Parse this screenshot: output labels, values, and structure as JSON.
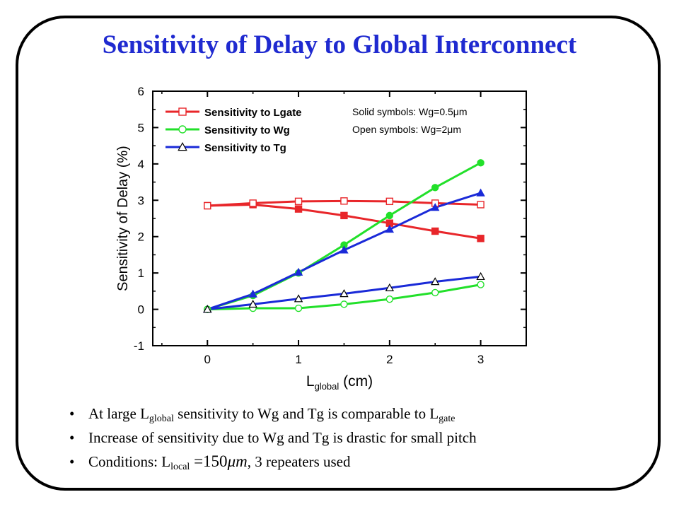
{
  "title": "Sensitivity of Delay to Global Interconnect",
  "chart_data": {
    "type": "line",
    "title": "",
    "xlabel": {
      "main": "L",
      "sub": "global",
      "unit": " (cm)"
    },
    "ylabel": "Sensitivity of Delay (%)",
    "xlim": [
      -0.6,
      3.5
    ],
    "ylim": [
      -1,
      6
    ],
    "xticks": [
      0,
      1,
      2,
      3
    ],
    "yticks": [
      -1,
      0,
      1,
      2,
      3,
      4,
      5,
      6
    ],
    "grid": false,
    "legend_position": "top-left",
    "annotations": {
      "solid": {
        "prefix": "Solid symbols: Wg=0.5",
        "mu": "μ",
        "suffix": "m"
      },
      "open": {
        "prefix": "Open symbols: Wg=2",
        "mu": "μ",
        "suffix": "m"
      }
    },
    "x": [
      0,
      0.5,
      1,
      1.5,
      2,
      2.5,
      3
    ],
    "series": [
      {
        "name": "Sensitivity to Lgate",
        "color": "#e8262a",
        "marker": "square",
        "fill": "solid",
        "values": [
          2.85,
          2.88,
          2.76,
          2.58,
          2.37,
          2.15,
          1.95
        ]
      },
      {
        "name": "Sensitivity to Lgate",
        "color": "#e8262a",
        "marker": "square",
        "fill": "open",
        "values": [
          2.85,
          2.92,
          2.97,
          2.98,
          2.97,
          2.92,
          2.88
        ]
      },
      {
        "name": "Sensitivity to Wg",
        "color": "#22e02a",
        "marker": "circle",
        "fill": "solid",
        "values": [
          0.0,
          0.38,
          1.0,
          1.77,
          2.58,
          3.35,
          4.03
        ]
      },
      {
        "name": "Sensitivity to Wg",
        "color": "#22e02a",
        "marker": "circle",
        "fill": "open",
        "values": [
          0.0,
          0.03,
          0.03,
          0.14,
          0.28,
          0.46,
          0.68
        ]
      },
      {
        "name": "Sensitivity to Tg",
        "color": "#1a2ad8",
        "marker": "triangle",
        "fill": "solid",
        "values": [
          0.0,
          0.42,
          1.02,
          1.63,
          2.2,
          2.8,
          3.2
        ]
      },
      {
        "name": "Sensitivity to Tg",
        "color": "#1a2ad8",
        "marker": "triangle",
        "fill": "open",
        "values": [
          0.0,
          0.14,
          0.29,
          0.43,
          0.59,
          0.76,
          0.9
        ]
      }
    ]
  },
  "bullets": {
    "bullet_symbol": "•",
    "b1": {
      "p1": "At large L",
      "sub1": "global",
      "p2": " sensitivity to Wg and Tg is comparable to L",
      "sub2": "gate"
    },
    "b2": "Increase of sensitivity due to Wg and Tg is drastic for small pitch",
    "b3": {
      "prefix": "Conditions: L",
      "sub": "local",
      "eq": " =150",
      "unit": "μm",
      "suffix": ", 3 repeaters used"
    }
  }
}
